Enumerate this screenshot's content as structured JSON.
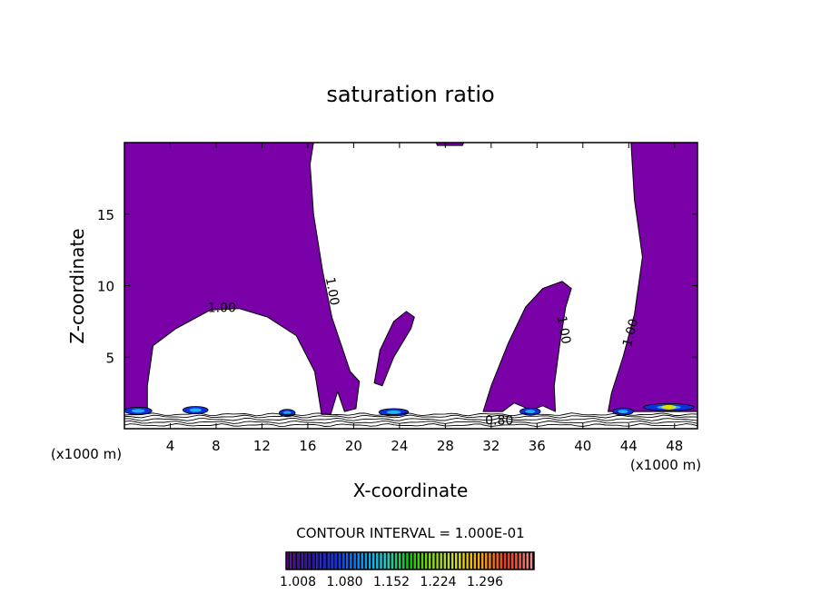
{
  "chart_data": {
    "type": "contour",
    "title": "saturation ratio",
    "xlabel": "X-coordinate",
    "ylabel": "Z-coordinate",
    "x_unit_left": "(x1000 m)",
    "x_unit_right": "(x1000 m)",
    "xlim": [
      0,
      50
    ],
    "ylim": [
      0,
      20
    ],
    "x_ticks": [
      4,
      8,
      12,
      16,
      20,
      24,
      28,
      32,
      36,
      40,
      44,
      48
    ],
    "y_ticks": [
      5,
      10,
      15
    ],
    "fill_color": "#7a00a8",
    "shaded_regions_xz": [
      [
        [
          0,
          20
        ],
        [
          16.5,
          20
        ],
        [
          16.2,
          18.5
        ],
        [
          16.5,
          15
        ],
        [
          17.3,
          11
        ],
        [
          18.1,
          7.8
        ],
        [
          19.7,
          4
        ],
        [
          20.5,
          3.3
        ],
        [
          20.2,
          1.4
        ],
        [
          19.2,
          1.2
        ],
        [
          18.6,
          2.6
        ],
        [
          18.0,
          1.0
        ],
        [
          17.2,
          1.0
        ],
        [
          16.6,
          4
        ],
        [
          15,
          6.5
        ],
        [
          12.5,
          7.8
        ],
        [
          10,
          8.4
        ],
        [
          7.5,
          8.3
        ],
        [
          4.5,
          7.0
        ],
        [
          2.5,
          5.8
        ],
        [
          2.0,
          3
        ],
        [
          2.0,
          1.3
        ],
        [
          0,
          1.3
        ]
      ],
      [
        [
          21.8,
          3.2
        ],
        [
          22.5,
          3.0
        ],
        [
          23.5,
          5
        ],
        [
          25.0,
          7
        ],
        [
          25.3,
          7.8
        ],
        [
          24.6,
          8.2
        ],
        [
          23.5,
          7.5
        ],
        [
          22.3,
          5.5
        ]
      ],
      [
        [
          31.3,
          1.2
        ],
        [
          32,
          3
        ],
        [
          33.5,
          6
        ],
        [
          35,
          8.5
        ],
        [
          36.5,
          9.8
        ],
        [
          38.2,
          10.3
        ],
        [
          39,
          9.8
        ],
        [
          38.5,
          8.5
        ],
        [
          38,
          6
        ],
        [
          37.5,
          3
        ],
        [
          37.6,
          1.2
        ],
        [
          36.5,
          1.6
        ],
        [
          35.5,
          1.3
        ],
        [
          34,
          1.8
        ],
        [
          33,
          1.2
        ]
      ],
      [
        [
          44.2,
          20
        ],
        [
          50,
          20
        ],
        [
          50,
          1.2
        ],
        [
          42.2,
          1.2
        ],
        [
          42.5,
          2.5
        ],
        [
          43.5,
          5
        ],
        [
          44.5,
          8
        ],
        [
          45.2,
          12
        ],
        [
          44.5,
          16
        ]
      ],
      [
        [
          27.2,
          20
        ],
        [
          29.6,
          20
        ],
        [
          29.5,
          19.8
        ],
        [
          27.3,
          19.8
        ]
      ]
    ],
    "contour_labels": [
      {
        "text": "1.00",
        "x": 8.5,
        "z": 8.4,
        "angle": 0
      },
      {
        "text": "1.00",
        "x": 18.1,
        "z": 9.6,
        "angle": 80
      },
      {
        "text": "1.00",
        "x": 38.3,
        "z": 6.9,
        "angle": 80
      },
      {
        "text": "1.00",
        "x": 44.2,
        "z": 6.7,
        "angle": -75
      },
      {
        "text": "0.80",
        "x": 32.7,
        "z": 0.55,
        "angle": 0
      }
    ],
    "contour_interval_label": "CONTOUR INTERVAL = 1.000E-01",
    "colorbar": {
      "tick_labels": [
        "1.008",
        "1.080",
        "1.152",
        "1.224",
        "1.296"
      ],
      "range": [
        1.0,
        1.33
      ],
      "colormap": [
        "#5a0090",
        "#2a10c0",
        "#0030ff",
        "#0090ff",
        "#00e0e0",
        "#00d000",
        "#90e000",
        "#e0e000",
        "#ffa000",
        "#ff3000",
        "#ff8080"
      ]
    }
  }
}
